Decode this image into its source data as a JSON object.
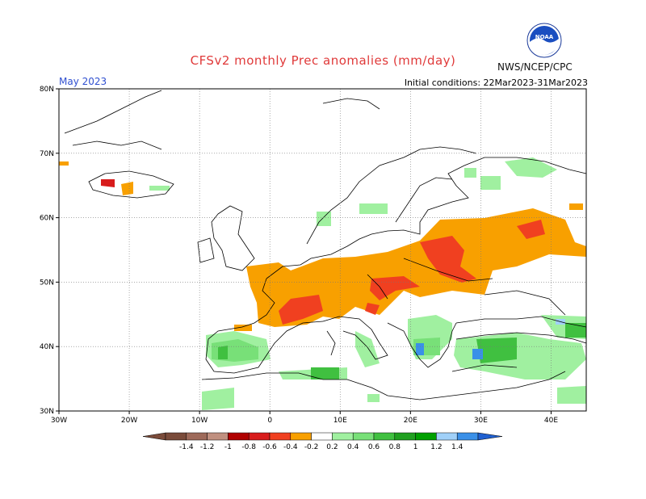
{
  "title": "CFSv2 monthly Prec anomalies (mm/day)",
  "month": "May 2023",
  "initial_conditions": "Initial conditions: 22Mar2023-31Mar2023",
  "agency": "NWS/NCEP/CPC",
  "logo_text": "NOAA",
  "colors": {
    "c_m14": "#7a4b3a",
    "c_m12": "#9e6a5a",
    "c_m10": "#c09080",
    "c_m08": "#b00000",
    "c_m06": "#d81c1c",
    "c_m04": "#f04020",
    "c_m02": "#f8a000",
    "c_zero": "#ffffff",
    "c_p02": "#a0f0a0",
    "c_p04": "#78e078",
    "c_p06": "#40c040",
    "c_p08": "#20a020",
    "c_p10": "#00a000",
    "c_p12": "#a0d0f8",
    "c_p14": "#3a90e8",
    "c_p16": "#2060d0"
  },
  "map": {
    "lon_range": [
      -30,
      45
    ],
    "lat_range": [
      30,
      80
    ],
    "x_ticks": [
      "30W",
      "20W",
      "10W",
      "0",
      "10E",
      "20E",
      "30E",
      "40E"
    ],
    "y_ticks": [
      "30N",
      "40N",
      "50N",
      "60N",
      "70N",
      "80N"
    ],
    "colorbar_labels": [
      "-1.4",
      "-1.2",
      "-1",
      "-0.8",
      "-0.6",
      "-0.4",
      "-0.2",
      "0.2",
      "0.4",
      "0.6",
      "0.8",
      "1",
      "1.2",
      "1.4"
    ]
  }
}
